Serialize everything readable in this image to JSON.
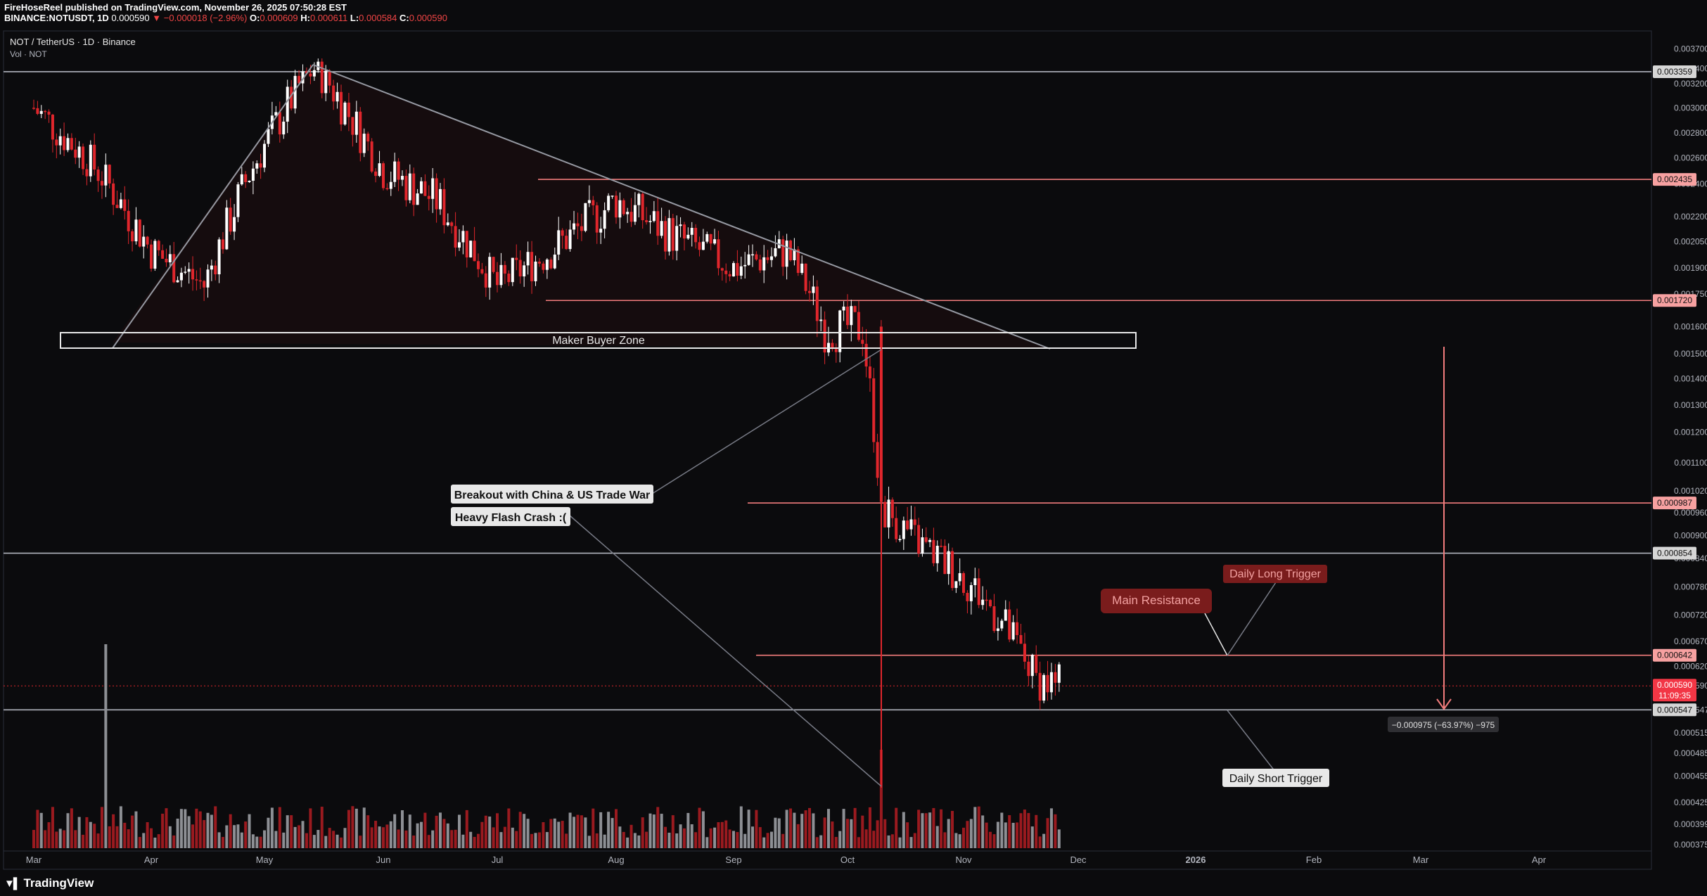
{
  "header": {
    "publisher": "FireHoseReel published on TradingView.com, November 26, 2025 07:50:28 EST",
    "symbol": "BINANCE:NOTUSDT, 1D",
    "last": "0.000590",
    "change": "−0.000018 (−2.96%)",
    "open_label": "O:",
    "open": "0.000609",
    "high_label": "H:",
    "high": "0.000611",
    "low_label": "L:",
    "low": "0.000584",
    "close_label": "C:",
    "close": "0.000590"
  },
  "pane": {
    "title": "NOT / TetherUS · 1D · Binance",
    "volume_label": "Vol · NOT"
  },
  "logo": {
    "text": "TradingView"
  },
  "colors": {
    "up": "#ffffff",
    "down": "#e0262c",
    "bg": "#0b0b0d",
    "resistance": "#f27c7c",
    "support": "#b2b5be"
  },
  "chart_data": {
    "type": "line",
    "title": "NOT / TetherUS · 1D · Binance",
    "x_ticks": [
      "Mar",
      "Apr",
      "May",
      "Jun",
      "Jul",
      "Aug",
      "Sep",
      "Oct",
      "Nov",
      "Dec",
      "2026",
      "Feb",
      "Mar",
      "Apr"
    ],
    "y_ticks": [
      "0.003700",
      "0.003400",
      "0.003200",
      "0.003000",
      "0.002800",
      "0.002600",
      "0.002400",
      "0.002200",
      "0.002050",
      "0.001900",
      "0.001750",
      "0.001600",
      "0.001500",
      "0.001400",
      "0.001300",
      "0.001200",
      "0.001100",
      "0.001020",
      "0.000960",
      "0.000900",
      "0.000840",
      "0.000780",
      "0.000720",
      "0.000670",
      "0.000620",
      "0.000590",
      "0.000547",
      "0.000515",
      "0.000485",
      "0.000455",
      "0.000425",
      "0.000399",
      "0.000375"
    ],
    "price_series": {
      "name": "NOT/USDT",
      "dates": [
        "2025-03-01",
        "2025-03-15",
        "2025-04-01",
        "2025-04-15",
        "2025-05-01",
        "2025-05-14",
        "2025-06-01",
        "2025-06-15",
        "2025-07-01",
        "2025-07-15",
        "2025-08-01",
        "2025-08-15",
        "2025-09-01",
        "2025-09-15",
        "2025-09-25",
        "2025-10-05",
        "2025-10-10",
        "2025-10-20",
        "2025-11-01",
        "2025-11-10",
        "2025-11-20",
        "2025-11-26"
      ],
      "close": [
        0.003,
        0.0026,
        0.002,
        0.0018,
        0.0027,
        0.0034,
        0.0025,
        0.0023,
        0.0018,
        0.002,
        0.0023,
        0.0021,
        0.0019,
        0.002,
        0.0016,
        0.0016,
        0.00098,
        0.00088,
        0.0008,
        0.00072,
        0.0006,
        0.00059
      ]
    },
    "price_levels": [
      {
        "label": "0.003359",
        "value": 0.003359,
        "kind": "support"
      },
      {
        "label": "0.002435",
        "value": 0.002435,
        "kind": "resistance"
      },
      {
        "label": "0.001720",
        "value": 0.00172,
        "kind": "resistance"
      },
      {
        "label": "0.000987",
        "value": 0.000987,
        "kind": "resistance"
      },
      {
        "label": "0.000854",
        "value": 0.000854,
        "kind": "support"
      },
      {
        "label": "0.000642",
        "value": 0.000642,
        "kind": "resistance"
      },
      {
        "label": "0.000547",
        "value": 0.000547,
        "kind": "support"
      }
    ],
    "current_price": {
      "label": "0.000590",
      "countdown": "11:09:35"
    },
    "annotations": [
      {
        "text": "Maker Buyer Zone",
        "style": "box"
      },
      {
        "text": "Breakout with China & US Trade War",
        "style": "white-label"
      },
      {
        "text": "Heavy Flash Crash :(",
        "style": "white-label"
      },
      {
        "text": "Main Resistance",
        "style": "red-label"
      },
      {
        "text": "Daily Long Trigger",
        "style": "red-label"
      },
      {
        "text": "Daily Short Trigger",
        "style": "white-label"
      },
      {
        "text": "−0.000975 (−63.97%) −975",
        "style": "measure"
      }
    ],
    "grid": false,
    "legend": "none"
  }
}
